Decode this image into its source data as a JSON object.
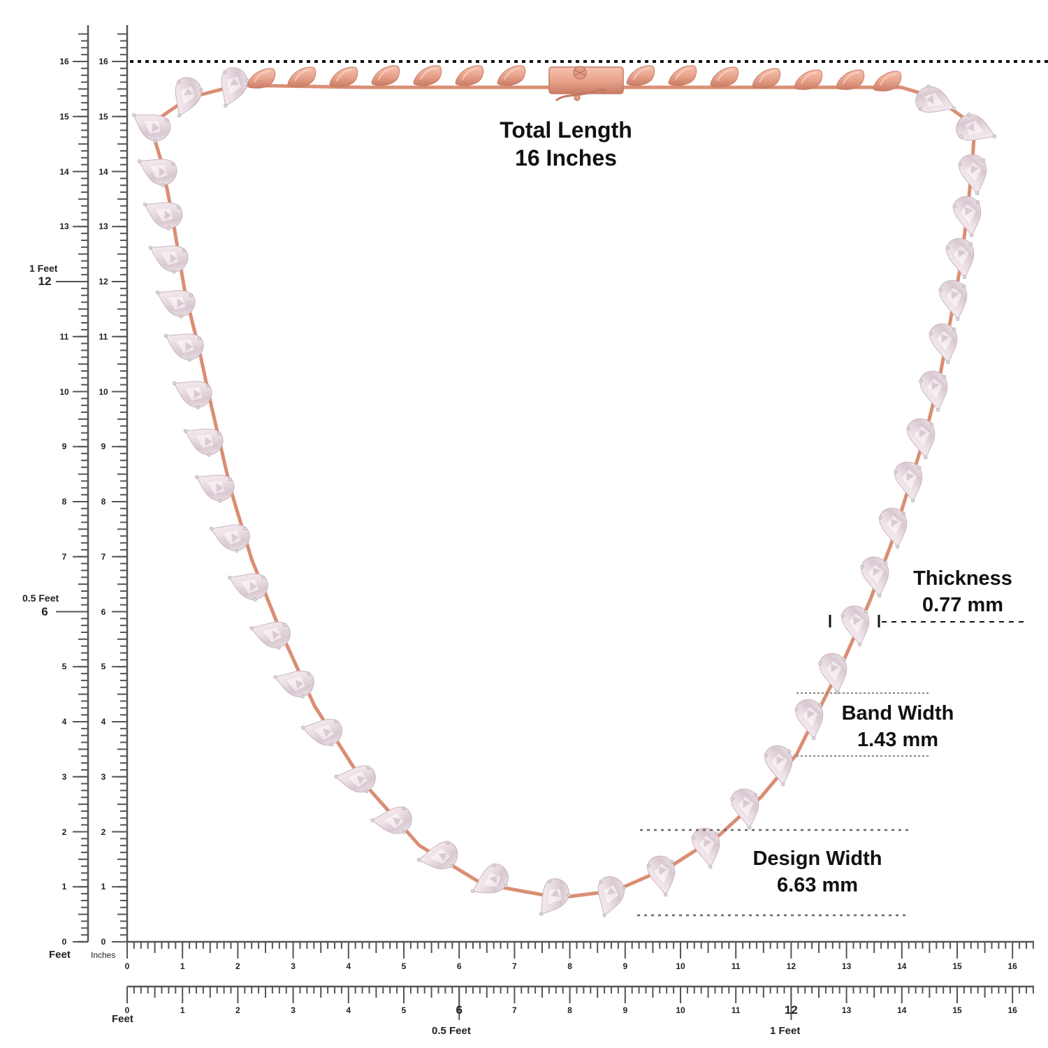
{
  "product": {
    "type": "pear-cut diamond tennis necklace",
    "metal_color": "#e9a48c",
    "metal_dark": "#c97c65",
    "stone_color": "#f1e7ec"
  },
  "annotations": {
    "total_length": {
      "label": "Total Length",
      "value": "16 Inches"
    },
    "thickness": {
      "label": "Thickness",
      "value": "0.77 mm"
    },
    "band_width": {
      "label": "Band Width",
      "value": "1.43 mm"
    },
    "design_width": {
      "label": "Design Width",
      "value": "6.63 mm"
    }
  },
  "rulers": {
    "vertical_feet": {
      "unit_label": "Feet",
      "ticks": [
        "0",
        "1",
        "2",
        "3",
        "4",
        "5",
        "6",
        "7",
        "8",
        "9",
        "10",
        "11",
        "12",
        "13",
        "14",
        "15",
        "16"
      ],
      "markers": [
        {
          "value": "6",
          "label": "0.5 Feet"
        },
        {
          "value": "12",
          "label": "1 Feet"
        }
      ]
    },
    "vertical_inches": {
      "unit_label": "Inches",
      "ticks": [
        "0",
        "1",
        "2",
        "3",
        "4",
        "5",
        "6",
        "7",
        "8",
        "9",
        "10",
        "11",
        "12",
        "13",
        "14",
        "15",
        "16"
      ]
    },
    "horizontal_inches": {
      "ticks": [
        "0",
        "1",
        "2",
        "3",
        "4",
        "5",
        "6",
        "7",
        "8",
        "9",
        "10",
        "11",
        "12",
        "13",
        "14",
        "15",
        "16"
      ]
    },
    "horizontal_feet": {
      "unit_label": "Feet",
      "ticks": [
        "0",
        "1",
        "2",
        "3",
        "4",
        "5",
        "6",
        "7",
        "8",
        "9",
        "10",
        "11",
        "12",
        "13",
        "14",
        "15",
        "16"
      ],
      "markers": [
        {
          "value": "6",
          "label": "0.5 Feet"
        },
        {
          "value": "12",
          "label": "1 Feet"
        }
      ]
    }
  },
  "colors": {
    "ruler": "#555555",
    "text": "#111111",
    "dotted_line": "#111111",
    "light_dotted": "#888888"
  }
}
